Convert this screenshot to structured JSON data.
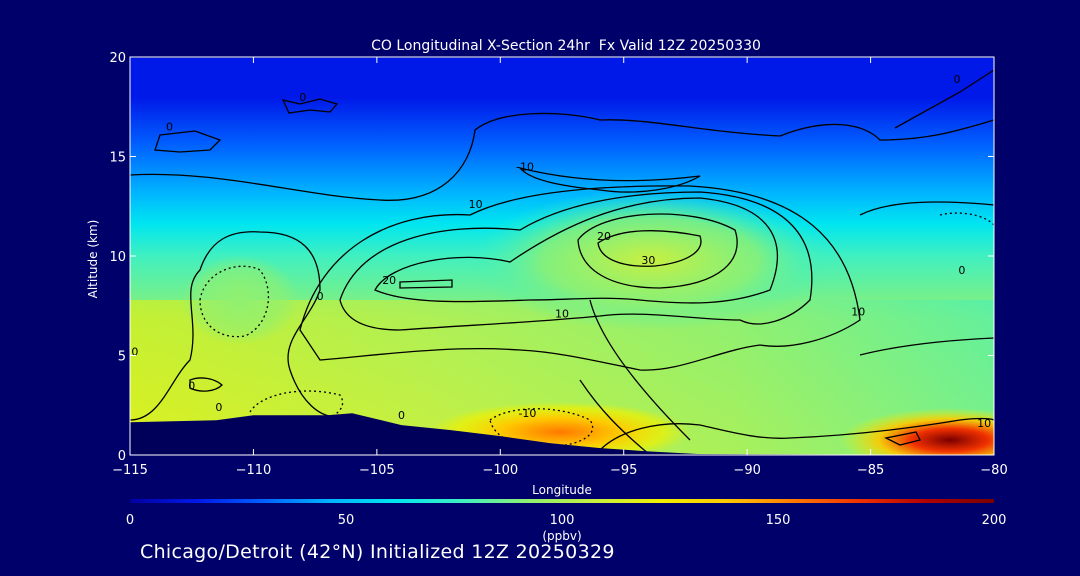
{
  "chart_data": {
    "type": "heatmap",
    "title": "CO Longitudinal X-Section 24hr  Fx Valid 12Z 20250330",
    "xlabel": "Longitude",
    "ylabel": "Altitude (km)",
    "xlim": [
      -115,
      -80
    ],
    "ylim": [
      0,
      20
    ],
    "x_ticks": [
      "-115",
      "-110",
      "-105",
      "-100",
      "-95",
      "-90",
      "-85",
      "-80"
    ],
    "y_ticks": [
      "0",
      "5",
      "10",
      "15",
      "20"
    ],
    "colorbar": {
      "range": [
        0,
        200
      ],
      "ticks": [
        "0",
        "50",
        "100",
        "150",
        "200"
      ],
      "units": "(ppbv)"
    },
    "anomaly_contours": [
      {
        "label": "10",
        "lon": -101,
        "alt": 12.4
      },
      {
        "label": "20",
        "lon": -104.5,
        "alt": 8.6
      },
      {
        "label": "30",
        "lon": -94,
        "alt": 9.6
      },
      {
        "label": "20",
        "lon": -95.8,
        "alt": 10.8
      },
      {
        "label": "10",
        "lon": -97.5,
        "alt": 6.9
      },
      {
        "label": "10",
        "lon": -85.5,
        "alt": 7.0
      },
      {
        "label": "-10",
        "lon": -99,
        "alt": 14.3
      },
      {
        "label": "-10",
        "lon": -98.9,
        "alt": 1.9
      },
      {
        "label": "10",
        "lon": -80.4,
        "alt": 1.4
      },
      {
        "label": "0",
        "lon": -112.5,
        "alt": 3.3
      },
      {
        "label": "0",
        "lon": -107.3,
        "alt": 7.8
      },
      {
        "label": "0",
        "lon": -108,
        "alt": 17.8
      },
      {
        "label": "0",
        "lon": -113.4,
        "alt": 16.3
      },
      {
        "label": "0",
        "lon": -104,
        "alt": 1.8
      },
      {
        "label": "0",
        "lon": -81.3,
        "alt": 9.1
      },
      {
        "label": "0",
        "lon": -81.5,
        "alt": 18.7
      },
      {
        "label": "0",
        "lon": -114.8,
        "alt": 5.0
      },
      {
        "label": "0",
        "lon": -111.4,
        "alt": 2.2
      }
    ]
  },
  "colors": {
    "background": "#00006a",
    "terrain": "#00005a",
    "colormap": [
      "#0000a0",
      "#0018e8",
      "#0060ff",
      "#00b4ff",
      "#00e6f0",
      "#40f0c0",
      "#90f070",
      "#c8f040",
      "#f0f000",
      "#ffc800",
      "#ff7800",
      "#f03000",
      "#b00000",
      "#7a0000"
    ]
  },
  "footer": {
    "caption": "Chicago/Detroit (42°N) Initialized 12Z 20250329"
  }
}
